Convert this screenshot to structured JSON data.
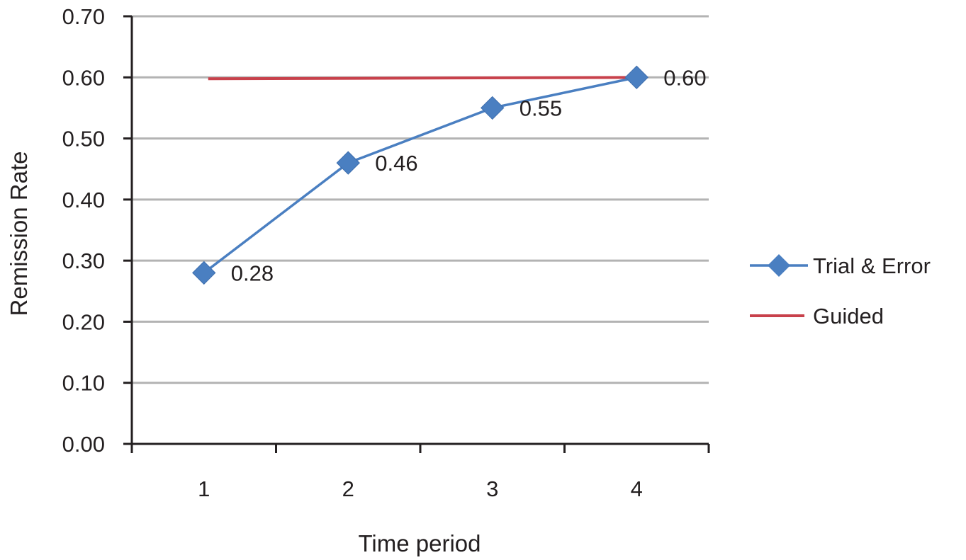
{
  "chart_data": {
    "type": "line",
    "title": "",
    "xlabel": "Time period",
    "ylabel": "Remission Rate",
    "categories": [
      "1",
      "2",
      "3",
      "4"
    ],
    "y_ticks": [
      "0.00",
      "0.10",
      "0.20",
      "0.30",
      "0.40",
      "0.50",
      "0.60",
      "0.70"
    ],
    "ylim": [
      0,
      0.7
    ],
    "grid": true,
    "legend_position": "right",
    "series": [
      {
        "name": "Trial & Error",
        "values": [
          0.28,
          0.46,
          0.55,
          0.6
        ],
        "data_labels": [
          "0.28",
          "0.46",
          "0.55",
          "0.60"
        ],
        "color": "#4a7fc1",
        "marker": "diamond"
      },
      {
        "name": "Guided",
        "values": [
          0.6,
          0.6,
          0.6,
          0.6
        ],
        "color": "#c8414b",
        "marker": "none"
      }
    ]
  }
}
